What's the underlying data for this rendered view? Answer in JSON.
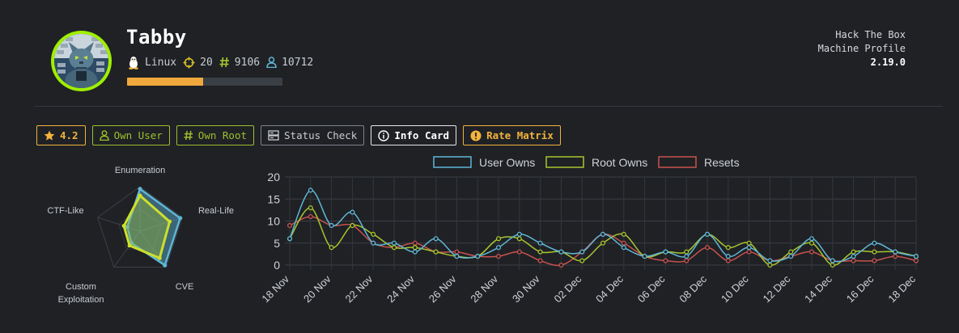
{
  "header": {
    "name": "Tabby",
    "os_icon": "linux-penguin-icon",
    "os": "Linux",
    "points": "20",
    "root_owns": "9106",
    "user_owns": "10712",
    "progress_fraction": 0.49
  },
  "brand": {
    "line1": "Hack The Box",
    "line2": "Machine Profile",
    "version": "2.19.0"
  },
  "buttons": {
    "rating": "4.2",
    "own_user": "Own User",
    "own_root": "Own Root",
    "status_check": "Status Check",
    "info_card": "Info Card",
    "rate_matrix": "Rate Matrix"
  },
  "icons": {
    "rating": "star-icon",
    "own_user": "user-icon",
    "own_root": "hash-icon",
    "status_check": "server-icon",
    "info_card": "info-icon",
    "rate_matrix": "warning-icon",
    "points": "crosshair-icon",
    "root_owns": "hash-icon",
    "user_owns": "user-icon"
  },
  "colors": {
    "background": "#1f2125",
    "user": "#5fb7d6",
    "root": "#a8c52e",
    "resets": "#c8524e",
    "amber": "#f2b33d",
    "progress_bg": "#3a3f46"
  },
  "radar": {
    "axes": [
      "Enumeration",
      "Real-Life",
      "CVE",
      "Custom Exploitation",
      "CTF-Like"
    ],
    "max": 10,
    "series": [
      {
        "values": [
          9.5,
          9.5,
          9.5,
          3.3,
          3.0
        ]
      },
      {
        "values": [
          8.0,
          7.0,
          7.5,
          4.0,
          3.8
        ]
      }
    ]
  },
  "chart_data": {
    "type": "line",
    "legend_placement": "top-center",
    "ylim": [
      0,
      20
    ],
    "yticks": [
      0,
      5,
      10,
      15,
      20
    ],
    "x": [
      "18 Nov",
      "19 Nov",
      "20 Nov",
      "21 Nov",
      "22 Nov",
      "23 Nov",
      "24 Nov",
      "25 Nov",
      "26 Nov",
      "27 Nov",
      "28 Nov",
      "29 Nov",
      "30 Nov",
      "01 Dec",
      "02 Dec",
      "03 Dec",
      "04 Dec",
      "05 Dec",
      "06 Dec",
      "07 Dec",
      "08 Dec",
      "09 Dec",
      "10 Dec",
      "11 Dec",
      "12 Dec",
      "13 Dec",
      "14 Dec",
      "15 Dec",
      "16 Dec",
      "17 Dec",
      "18 Dec"
    ],
    "x_tick_labels": [
      "18 Nov",
      "20 Nov",
      "22 Nov",
      "24 Nov",
      "26 Nov",
      "28 Nov",
      "30 Nov",
      "02 Dec",
      "04 Dec",
      "06 Dec",
      "08 Dec",
      "10 Dec",
      "12 Dec",
      "14 Dec",
      "16 Dec",
      "18 Dec"
    ],
    "grid": true,
    "series": [
      {
        "name": "User Owns",
        "values": [
          6,
          17,
          9,
          12,
          5,
          5,
          3,
          6,
          2,
          2,
          4,
          7,
          5,
          3,
          3,
          7,
          4,
          2,
          3,
          2,
          7,
          2,
          4,
          1,
          2,
          6,
          1,
          2,
          5,
          3,
          2
        ]
      },
      {
        "name": "Root Owns",
        "values": [
          6,
          13,
          4,
          9,
          7,
          4,
          4,
          3,
          2,
          2,
          6,
          6,
          3,
          3,
          1,
          5,
          7,
          2,
          3,
          3,
          7,
          4,
          5,
          0,
          3,
          5,
          0,
          3,
          3,
          3,
          2
        ]
      },
      {
        "name": "Resets",
        "values": [
          9,
          11,
          9,
          9,
          5,
          4,
          5,
          3,
          3,
          2,
          2,
          3,
          1,
          0,
          3,
          7,
          5,
          2,
          1,
          1,
          4,
          1,
          3,
          1,
          2,
          3,
          1,
          1,
          1,
          2,
          1
        ]
      }
    ]
  }
}
